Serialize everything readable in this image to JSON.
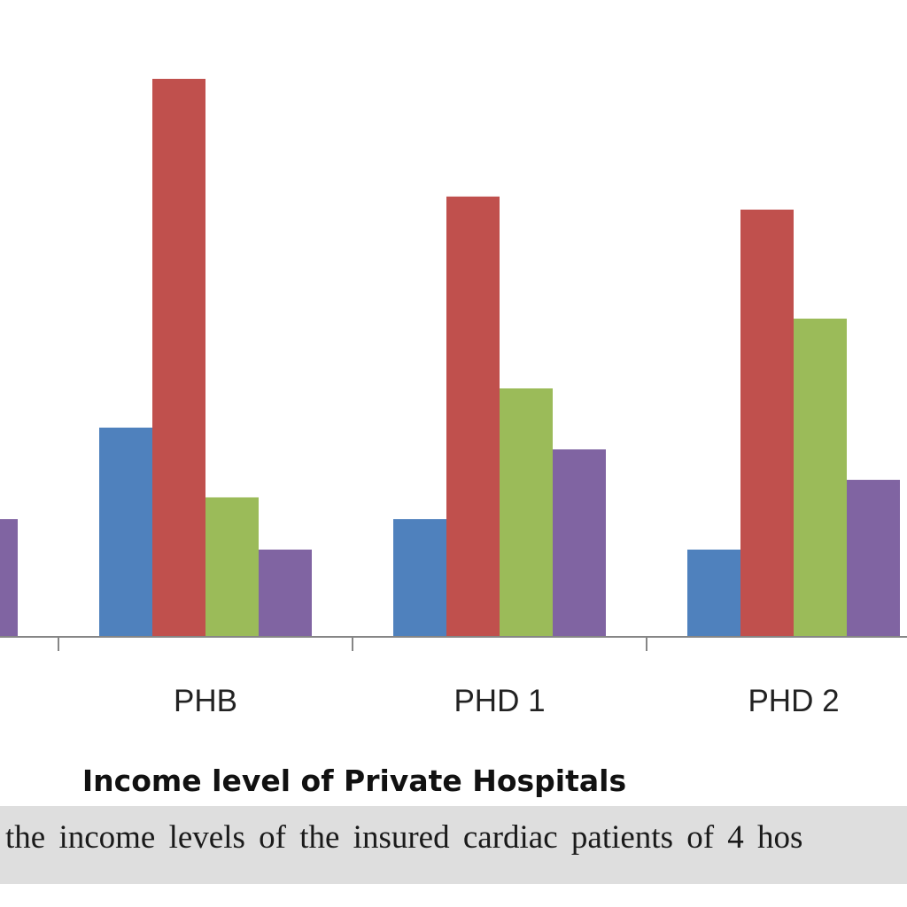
{
  "chart_data": {
    "type": "bar",
    "categories": [
      "",
      "PHB",
      "PHD 1",
      "PHD 2"
    ],
    "series": [
      {
        "values": [
          null,
          48,
          27,
          20
        ],
        "color": "#4f81bd"
      },
      {
        "values": [
          null,
          128,
          101,
          98
        ],
        "color": "#c0504d"
      },
      {
        "values": [
          null,
          32,
          57,
          73
        ],
        "color": "#9bbb59"
      },
      {
        "values": [
          27,
          20,
          43,
          36
        ],
        "color": "#8064a2"
      }
    ],
    "xlabel": "Income level of Private Hospitals",
    "ylabel": "",
    "ylim": [
      0,
      140
    ],
    "grid": false,
    "legend": "none"
  },
  "caption": "the income levels of the insured cardiac patients of 4 hos"
}
